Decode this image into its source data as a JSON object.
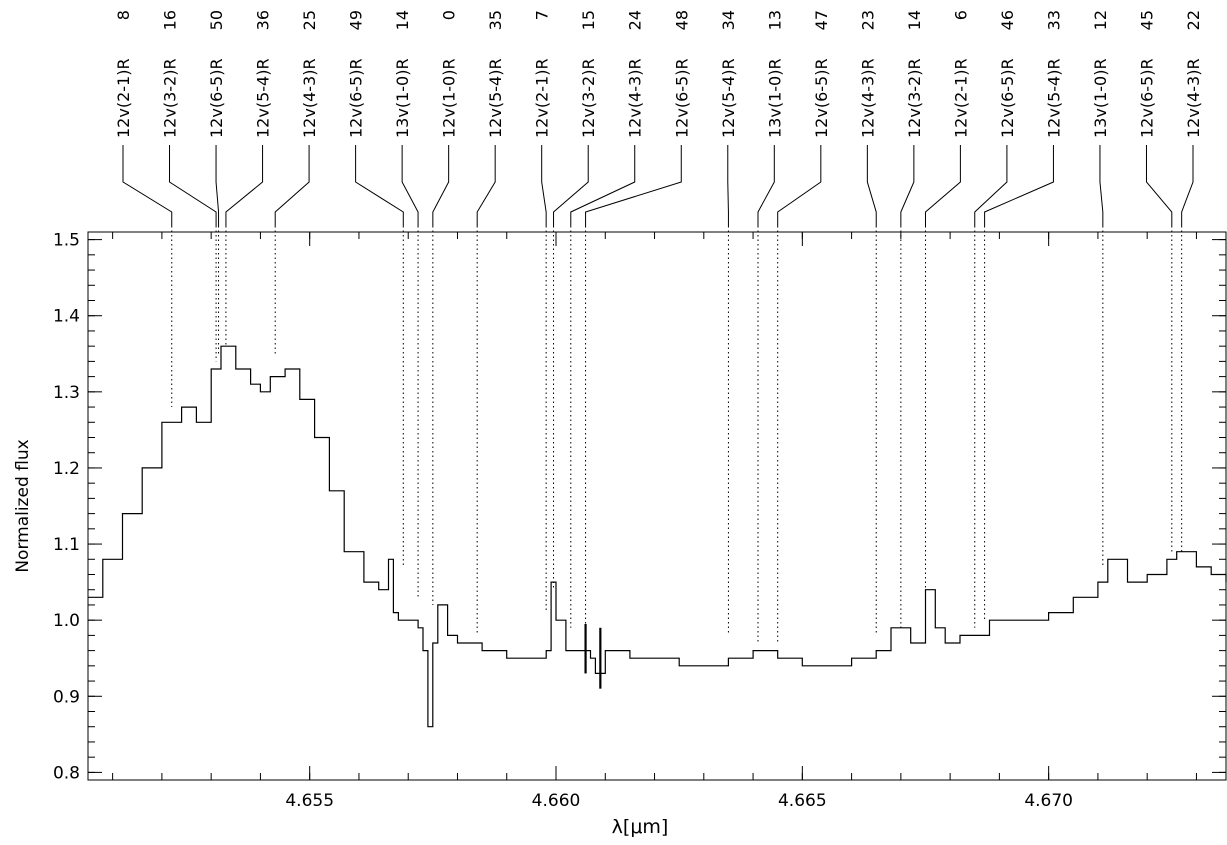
{
  "chart_data": {
    "type": "line",
    "title": "",
    "xlabel": "λ[μm]",
    "ylabel": "Normalized flux",
    "xlim": [
      4.6505,
      4.6736
    ],
    "ylim": [
      0.79,
      1.51
    ],
    "grid": false,
    "legend": "none",
    "colors": {
      "line": "#000000",
      "marker": "#000000"
    },
    "x_ticks": [
      {
        "value": 4.655,
        "label": "4.655"
      },
      {
        "value": 4.66,
        "label": "4.660"
      },
      {
        "value": 4.665,
        "label": "4.665"
      },
      {
        "value": 4.67,
        "label": "4.670"
      }
    ],
    "y_ticks": [
      {
        "value": 0.8,
        "label": "0.8"
      },
      {
        "value": 0.9,
        "label": "0.9"
      },
      {
        "value": 1.0,
        "label": "1.0"
      },
      {
        "value": 1.1,
        "label": "1.1"
      },
      {
        "value": 1.2,
        "label": "1.2"
      },
      {
        "value": 1.3,
        "label": "1.3"
      },
      {
        "value": 1.4,
        "label": "1.4"
      },
      {
        "value": 1.5,
        "label": "1.5"
      }
    ],
    "series": [
      {
        "x": [
          4.6505,
          4.6508,
          4.6512,
          4.6516,
          4.652,
          4.6524,
          4.6527,
          4.653,
          4.6532,
          4.6535,
          4.6538,
          4.654,
          4.6542,
          4.6545,
          4.6548,
          4.6551,
          4.6554,
          4.6557,
          4.6561,
          4.6564,
          4.6566,
          4.6567,
          4.6568,
          4.657,
          4.6572,
          4.6573,
          4.6574,
          4.6575,
          4.6576,
          4.6578,
          4.658,
          4.6585,
          4.659,
          4.6595,
          4.6598,
          4.6599,
          4.66,
          4.6602,
          4.6605,
          4.6607,
          4.6608,
          4.661,
          4.6615,
          4.662,
          4.6625,
          4.663,
          4.6635,
          4.664,
          4.6645,
          4.665,
          4.6655,
          4.666,
          4.6665,
          4.6668,
          4.6672,
          4.6675,
          4.6677,
          4.6679,
          4.6682,
          4.6688,
          4.6695,
          4.67,
          4.6705,
          4.671,
          4.6712,
          4.6716,
          4.672,
          4.6724,
          4.6726,
          4.673,
          4.6733,
          4.6736
        ],
        "y": [
          1.03,
          1.08,
          1.14,
          1.2,
          1.26,
          1.28,
          1.26,
          1.33,
          1.36,
          1.33,
          1.31,
          1.3,
          1.32,
          1.33,
          1.29,
          1.24,
          1.17,
          1.09,
          1.05,
          1.04,
          1.08,
          1.01,
          1.0,
          1.0,
          0.99,
          0.96,
          0.86,
          0.97,
          1.02,
          0.98,
          0.97,
          0.96,
          0.95,
          0.95,
          0.96,
          1.05,
          1.0,
          0.96,
          0.96,
          0.95,
          0.93,
          0.96,
          0.95,
          0.95,
          0.94,
          0.94,
          0.95,
          0.96,
          0.95,
          0.94,
          0.94,
          0.95,
          0.96,
          0.99,
          0.97,
          1.04,
          0.99,
          0.97,
          0.98,
          1.0,
          1.0,
          1.01,
          1.03,
          1.05,
          1.08,
          1.05,
          1.06,
          1.08,
          1.09,
          1.07,
          1.06,
          1.05
        ]
      }
    ],
    "spikes": [
      {
        "x": 4.6606,
        "y_top": 0.995,
        "y_bottom": 0.93
      },
      {
        "x": 4.6609,
        "y_top": 0.99,
        "y_bottom": 0.91
      }
    ],
    "line_ids": [
      {
        "label": "12v(2-1)R",
        "j": "8",
        "x": 4.6522,
        "y_end": 1.28
      },
      {
        "label": "12v(3-2)R",
        "j": "16",
        "x": 4.6531,
        "y_end": 1.34
      },
      {
        "label": "12v(6-5)R",
        "j": "50",
        "x": 4.65315,
        "y_end": 1.35
      },
      {
        "label": "12v(5-4)R",
        "j": "36",
        "x": 4.6533,
        "y_end": 1.36
      },
      {
        "label": "12v(4-3)R",
        "j": "25",
        "x": 4.6543,
        "y_end": 1.35
      },
      {
        "label": "12v(6-5)R",
        "j": "49",
        "x": 4.6569,
        "y_end": 1.07
      },
      {
        "label": "13v(1-0)R",
        "j": "14",
        "x": 4.6572,
        "y_end": 1.03
      },
      {
        "label": "12v(1-0)R",
        "j": "0",
        "x": 4.6575,
        "y_end": 1.02
      },
      {
        "label": "12v(5-4)R",
        "j": "35",
        "x": 4.6584,
        "y_end": 0.98
      },
      {
        "label": "12v(2-1)R",
        "j": "7",
        "x": 4.6598,
        "y_end": 1.01
      },
      {
        "label": "12v(3-2)R",
        "j": "15",
        "x": 4.65995,
        "y_end": 1.04
      },
      {
        "label": "12v(4-3)R",
        "j": "24",
        "x": 4.6603,
        "y_end": 0.99
      },
      {
        "label": "12v(6-5)R",
        "j": "48",
        "x": 4.6606,
        "y_end": 0.98
      },
      {
        "label": "12v(5-4)R",
        "j": "34",
        "x": 4.6635,
        "y_end": 0.98
      },
      {
        "label": "13v(1-0)R",
        "j": "13",
        "x": 4.6641,
        "y_end": 0.97
      },
      {
        "label": "12v(6-5)R",
        "j": "47",
        "x": 4.6645,
        "y_end": 0.97
      },
      {
        "label": "12v(4-3)R",
        "j": "23",
        "x": 4.6665,
        "y_end": 0.98
      },
      {
        "label": "12v(3-2)R",
        "j": "14",
        "x": 4.667,
        "y_end": 0.99
      },
      {
        "label": "12v(2-1)R",
        "j": "6",
        "x": 4.6675,
        "y_end": 1.02
      },
      {
        "label": "12v(6-5)R",
        "j": "46",
        "x": 4.6685,
        "y_end": 0.99
      },
      {
        "label": "12v(5-4)R",
        "j": "33",
        "x": 4.6687,
        "y_end": 1.0
      },
      {
        "label": "13v(1-0)R",
        "j": "12",
        "x": 4.6711,
        "y_end": 1.07
      },
      {
        "label": "12v(6-5)R",
        "j": "45",
        "x": 4.6725,
        "y_end": 1.09
      },
      {
        "label": "12v(4-3)R",
        "j": "22",
        "x": 4.6727,
        "y_end": 1.09
      }
    ]
  }
}
